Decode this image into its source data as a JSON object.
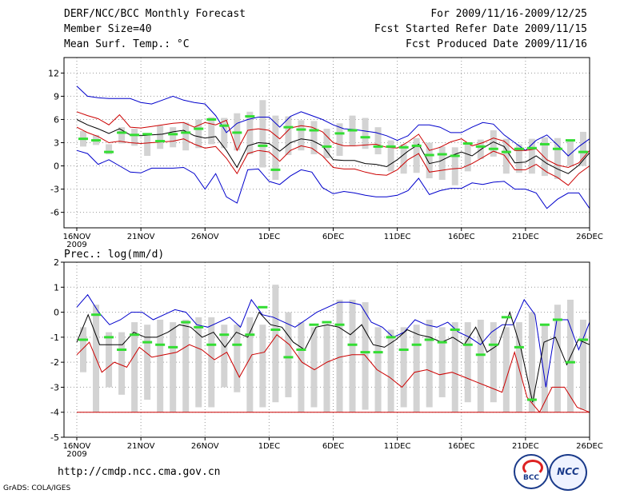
{
  "header": {
    "title": "DERF/NCC/BCC Monthly Forecast",
    "member_size": "Member Size=40",
    "variable": "Mean Surf. Temp.: °C",
    "period": "For 2009/11/16-2009/12/25",
    "started": "Fcst Started Refer Date 2009/11/15",
    "produced": "Fcst Produced Date 2009/11/16"
  },
  "footer": {
    "url": "http://cmdp.ncc.cma.gov.cn",
    "grads": "GrADS: COLA/IGES",
    "logo1": "BCC",
    "logo2": "NCC"
  },
  "colors": {
    "max": "#0000cc",
    "spread": "#cc0000",
    "mean": "#000000",
    "box": "#d3d3d3",
    "marker": "#33dd33"
  },
  "chart_data": [
    {
      "type": "line",
      "title": "Mean Surf. Temp.: °C",
      "x_day_start": 0,
      "x_day_end": 40,
      "ylim": [
        -8,
        14
      ],
      "yticks": [
        -6,
        -3,
        0,
        3,
        6,
        9,
        12
      ],
      "xticks": [
        {
          "day": 0,
          "label": "16NOV"
        },
        {
          "day": 5,
          "label": "21NOV"
        },
        {
          "day": 10,
          "label": "26NOV"
        },
        {
          "day": 15,
          "label": "1DEC"
        },
        {
          "day": 20,
          "label": "6DEC"
        },
        {
          "day": 25,
          "label": "11DEC"
        },
        {
          "day": 30,
          "label": "16DEC"
        },
        {
          "day": 35,
          "label": "21DEC"
        },
        {
          "day": 40,
          "label": "26DEC"
        }
      ],
      "year_label": "2009",
      "series": [
        {
          "name": "max",
          "values": [
            10.3,
            9.0,
            8.8,
            8.7,
            8.7,
            8.7,
            8.2,
            8.0,
            8.5,
            9.0,
            8.5,
            8.2,
            8.0,
            6.5,
            4.3,
            5.5,
            6.0,
            6.3,
            6.3,
            5.0,
            6.4,
            7.0,
            6.5,
            6.0,
            5.3,
            4.8,
            4.7,
            4.5,
            4.3,
            3.9,
            3.3,
            3.9,
            5.3,
            5.3,
            5.0,
            4.3,
            4.3,
            5.0,
            5.6,
            5.4,
            4.0,
            3.0,
            2.0,
            3.3,
            4.0,
            2.7,
            1.3,
            2.5,
            3.5
          ]
        },
        {
          "name": "upper",
          "values": [
            7.0,
            6.5,
            6.1,
            5.3,
            6.6,
            5.0,
            4.9,
            5.1,
            5.3,
            5.5,
            5.6,
            5.0,
            5.6,
            5.3,
            5.9,
            2.0,
            4.6,
            4.8,
            4.6,
            3.5,
            4.9,
            5.2,
            5.0,
            4.4,
            3.0,
            2.6,
            2.6,
            2.7,
            2.8,
            2.4,
            2.3,
            3.1,
            4.1,
            2.0,
            2.4,
            3.1,
            3.5,
            2.6,
            3.0,
            3.6,
            3.2,
            2.0,
            2.0,
            2.2,
            0.8,
            0.1,
            -0.2,
            0.4,
            2.0
          ]
        },
        {
          "name": "mean",
          "values": [
            6.0,
            5.3,
            4.8,
            4.2,
            4.8,
            4.0,
            3.9,
            4.0,
            4.1,
            4.4,
            4.6,
            3.9,
            3.6,
            3.8,
            2.0,
            -0.2,
            2.6,
            3.0,
            2.9,
            1.9,
            3.0,
            3.5,
            3.3,
            2.6,
            0.8,
            0.7,
            0.7,
            0.3,
            0.2,
            -0.1,
            0.8,
            1.9,
            2.8,
            0.3,
            0.6,
            1.3,
            1.8,
            1.3,
            2.3,
            3.1,
            2.5,
            0.4,
            0.5,
            1.3,
            0.3,
            -0.4,
            -1.0,
            0.1,
            1.7
          ]
        },
        {
          "name": "lower",
          "values": [
            5.0,
            4.3,
            3.8,
            3.0,
            3.2,
            3.0,
            2.9,
            3.0,
            3.1,
            3.2,
            3.5,
            2.8,
            2.3,
            2.5,
            1.0,
            -1.0,
            1.6,
            2.0,
            1.8,
            0.6,
            2.0,
            2.6,
            2.3,
            1.3,
            -0.2,
            -0.4,
            -0.4,
            -0.8,
            -1.1,
            -1.2,
            -0.5,
            0.8,
            1.6,
            -0.8,
            -0.6,
            -0.4,
            -0.3,
            0.3,
            1.1,
            1.9,
            1.4,
            -0.5,
            -0.5,
            0.2,
            -0.8,
            -1.5,
            -2.5,
            -1.0,
            0.0
          ]
        },
        {
          "name": "min",
          "values": [
            2.0,
            1.6,
            0.2,
            0.8,
            0.0,
            -0.8,
            -0.9,
            -0.3,
            -0.3,
            -0.3,
            -0.2,
            -1.0,
            -3.0,
            -1.0,
            -4.0,
            -4.8,
            -0.5,
            -0.4,
            -2.0,
            -2.4,
            -1.3,
            -0.5,
            -0.8,
            -2.8,
            -3.6,
            -3.3,
            -3.5,
            -3.8,
            -4.0,
            -4.0,
            -3.8,
            -3.2,
            -1.6,
            -3.7,
            -3.2,
            -2.9,
            -2.9,
            -2.2,
            -2.4,
            -2.1,
            -2.0,
            -3.0,
            -3.0,
            -3.5,
            -5.5,
            -4.3,
            -3.5,
            -3.5,
            -5.5
          ]
        }
      ],
      "boxes_days": [
        0,
        1,
        2,
        3,
        4,
        5,
        6,
        7,
        8,
        9,
        10,
        11,
        12,
        13,
        14,
        15,
        16,
        17,
        18,
        19,
        20,
        21,
        22,
        23,
        24,
        25,
        26,
        27,
        28,
        29,
        30,
        31,
        32,
        33,
        34,
        35,
        36,
        37,
        38,
        39
      ],
      "box_low": [
        2.5,
        2.7,
        1.5,
        2.9,
        2.6,
        1.3,
        2.2,
        2.4,
        2.0,
        2.3,
        2.8,
        2.3,
        2.0,
        1.5,
        -0.2,
        -1.8,
        1.4,
        2.0,
        1.5,
        1.0,
        1.3,
        2.6,
        2.2,
        1.5,
        -0.7,
        -1.0,
        -0.9,
        -1.6,
        -1.8,
        -2.5,
        -0.7,
        0.9,
        1.2,
        -1.0,
        -0.9,
        -1.0,
        -1.3,
        -1.7,
        0.0,
        0.0
      ],
      "box_high": [
        4.5,
        4.0,
        2.8,
        5.0,
        4.8,
        4.2,
        5.2,
        5.0,
        5.6,
        6.0,
        6.3,
        6.2,
        6.8,
        7.0,
        8.5,
        6.5,
        6.4,
        5.9,
        5.8,
        4.8,
        5.5,
        6.5,
        6.2,
        5.0,
        3.3,
        2.8,
        3.6,
        3.0,
        2.5,
        2.4,
        2.8,
        3.4,
        4.6,
        3.5,
        2.8,
        3.5,
        3.7,
        3.6,
        3.2,
        4.4
      ],
      "markers": [
        3.5,
        3.3,
        1.8,
        4.3,
        4.0,
        4.1,
        3.2,
        4.1,
        4.3,
        4.8,
        6.0,
        5.2,
        4.3,
        6.4,
        2.6,
        -0.5,
        5.0,
        4.7,
        4.6,
        2.5,
        4.2,
        4.6,
        3.7,
        2.5,
        2.5,
        2.4,
        2.6,
        1.4,
        1.5,
        1.3,
        2.9,
        2.5,
        2.2,
        1.8,
        2.2,
        2.3,
        2.8,
        2.2,
        3.3,
        1.8
      ]
    },
    {
      "type": "line",
      "title": "Prec.: log(mm/d)",
      "x_day_start": 0,
      "x_day_end": 40,
      "ylim": [
        -5,
        2
      ],
      "yticks": [
        -5,
        -4,
        -3,
        -2,
        -1,
        0,
        1,
        2
      ],
      "xticks": [
        {
          "day": 0,
          "label": "16NOV"
        },
        {
          "day": 5,
          "label": "21NOV"
        },
        {
          "day": 10,
          "label": "26NOV"
        },
        {
          "day": 15,
          "label": "1DEC"
        },
        {
          "day": 20,
          "label": "6DEC"
        },
        {
          "day": 25,
          "label": "11DEC"
        },
        {
          "day": 30,
          "label": "16DEC"
        },
        {
          "day": 35,
          "label": "21DEC"
        },
        {
          "day": 40,
          "label": "26DEC"
        }
      ],
      "year_label": "2009",
      "series": [
        {
          "name": "max",
          "values": [
            0.2,
            0.7,
            0.0,
            -0.5,
            -0.3,
            0.0,
            0.0,
            -0.3,
            -0.1,
            0.1,
            0.0,
            -0.5,
            -0.6,
            -0.4,
            -0.2,
            -0.6,
            0.5,
            -0.1,
            -0.2,
            -0.4,
            -0.6,
            -0.3,
            0.0,
            0.2,
            0.4,
            0.4,
            0.3,
            -0.4,
            -0.6,
            -1.0,
            -0.8,
            -0.3,
            -0.5,
            -0.6,
            -0.4,
            -0.8,
            -1.0,
            -1.3,
            -0.8,
            -0.5,
            -0.5,
            0.5,
            -0.1,
            -3.0,
            -0.3,
            -0.3,
            -1.5,
            -0.4
          ]
        },
        {
          "name": "mean",
          "values": [
            -1.2,
            -0.1,
            -1.3,
            -1.3,
            -1.3,
            -0.8,
            -1.0,
            -1.0,
            -0.8,
            -0.5,
            -0.6,
            -1.0,
            -0.8,
            -1.4,
            -0.8,
            -1.0,
            0.0,
            -0.5,
            -0.6,
            -1.2,
            -1.5,
            -0.6,
            -0.5,
            -0.6,
            -0.9,
            -0.5,
            -1.3,
            -1.4,
            -1.1,
            -0.7,
            -0.9,
            -1.0,
            -1.2,
            -1.0,
            -1.3,
            -0.6,
            -1.6,
            -1.3,
            0.0,
            -1.5,
            -3.6,
            -1.2,
            -1.0,
            -2.1,
            -1.1,
            -1.3
          ]
        },
        {
          "name": "min",
          "values": [
            -1.7,
            -1.2,
            -2.4,
            -2.0,
            -2.2,
            -1.4,
            -1.8,
            -1.7,
            -1.6,
            -1.3,
            -1.5,
            -1.9,
            -1.6,
            -2.6,
            -1.7,
            -1.6,
            -0.9,
            -1.3,
            -2.0,
            -2.3,
            -2.0,
            -1.8,
            -1.7,
            -1.7,
            -2.3,
            -2.6,
            -3.0,
            -2.4,
            -2.3,
            -2.5,
            -2.4,
            -2.6,
            -2.8,
            -3.0,
            -3.2,
            -1.6,
            -3.4,
            -4.0,
            -3.0,
            -3.0,
            -3.8,
            -4.0
          ]
        }
      ],
      "bottom_line": -4,
      "boxes_days": [
        0,
        1,
        2,
        3,
        4,
        5,
        6,
        7,
        8,
        9,
        10,
        11,
        12,
        13,
        14,
        15,
        16,
        17,
        18,
        19,
        20,
        21,
        22,
        23,
        24,
        25,
        26,
        27,
        28,
        29,
        30,
        31,
        32,
        33,
        34,
        35,
        36,
        37,
        38,
        39
      ],
      "box_low": [
        -2.4,
        -4.0,
        -3.0,
        -3.3,
        -4.0,
        -3.5,
        -4.0,
        -4.0,
        -4.0,
        -3.8,
        -3.8,
        -3.0,
        -3.2,
        -4.0,
        -3.8,
        -3.6,
        -3.4,
        -4.0,
        -3.8,
        -4.0,
        -4.0,
        -4.0,
        -3.9,
        -4.0,
        -4.0,
        -3.8,
        -4.0,
        -3.8,
        -3.4,
        -4.0,
        -3.6,
        -4.0,
        -3.6,
        -4.0,
        -4.0,
        -4.0,
        -4.0,
        -4.0,
        -4.0,
        -3.9
      ],
      "box_high": [
        -0.6,
        0.3,
        -0.8,
        -0.8,
        -0.4,
        -0.5,
        -0.3,
        -0.4,
        -0.3,
        -0.2,
        -0.2,
        -0.5,
        -0.5,
        -0.2,
        -0.5,
        1.1,
        0.0,
        -0.4,
        -0.6,
        -0.5,
        0.5,
        0.5,
        0.4,
        -0.6,
        -0.7,
        -0.6,
        -0.5,
        -0.3,
        -0.6,
        -0.4,
        -0.4,
        -0.3,
        -0.4,
        -0.6,
        -0.4,
        0.0,
        -0.5,
        0.3,
        0.5,
        -0.3
      ],
      "markers": [
        -1.1,
        -0.1,
        -1.0,
        -1.5,
        -0.9,
        -1.2,
        -1.3,
        -1.4,
        -0.4,
        -0.6,
        -1.3,
        -0.9,
        -1.3,
        -0.9,
        0.2,
        -0.7,
        -1.8,
        -1.5,
        -0.5,
        -0.4,
        -0.5,
        -1.3,
        -1.6,
        -1.6,
        -1.0,
        -1.5,
        -1.3,
        -1.1,
        -1.2,
        -0.7,
        -1.3,
        -1.7,
        -1.3,
        -0.2,
        -1.4,
        -3.5,
        -0.5,
        -0.3,
        -2.0,
        -1.1
      ]
    }
  ]
}
